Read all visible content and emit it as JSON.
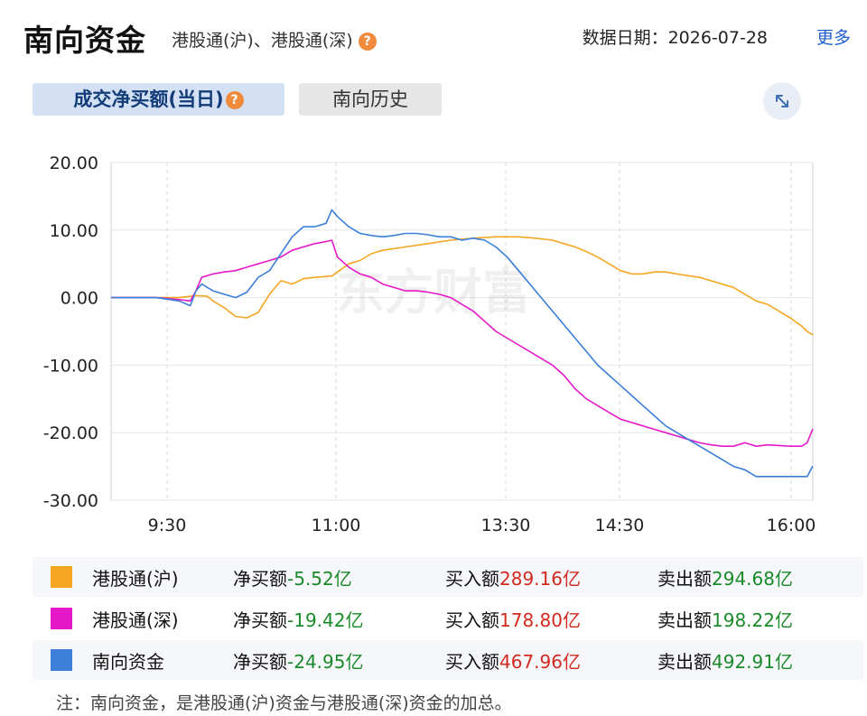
{
  "header": {
    "title": "南向资金",
    "subtitle": "港股通(沪)、港股通(深)",
    "help_icon": "question-icon",
    "date_label": "数据日期：2026-07-28",
    "more_link": "更多"
  },
  "tabs": [
    {
      "label": "成交净买额(当日)",
      "active": true
    },
    {
      "label": "南向历史",
      "active": false
    }
  ],
  "expand_icon": "expand-arrows-icon",
  "watermark": "东方财富",
  "colors": {
    "hu": "#f5a623",
    "shen": "#e619c8",
    "south": "#3b7fd8",
    "green": "#1a8a2a",
    "red": "#d22a1f"
  },
  "chart_data": {
    "type": "line",
    "x_ticks": [
      "9:30",
      "11:00",
      "13:30",
      "14:30",
      "16:00"
    ],
    "y_ticks": [
      "20.00",
      "10.00",
      "0.00",
      "-10.00",
      "-20.00",
      "-30.00"
    ],
    "ylim": [
      -30,
      20
    ],
    "grid": true,
    "series": [
      {
        "name": "港股通(沪)",
        "color": "#f5a623",
        "values": [
          [
            0,
            0
          ],
          [
            40,
            0
          ],
          [
            60,
            0
          ],
          [
            75,
            0.3
          ],
          [
            85,
            0.2
          ],
          [
            90,
            -0.5
          ],
          [
            100,
            -1.5
          ],
          [
            110,
            -2.8
          ],
          [
            120,
            -3.0
          ],
          [
            130,
            -2.2
          ],
          [
            140,
            0.5
          ],
          [
            150,
            2.5
          ],
          [
            160,
            2.0
          ],
          [
            170,
            2.8
          ],
          [
            180,
            3.0
          ],
          [
            195,
            3.2
          ],
          [
            210,
            5.0
          ],
          [
            220,
            5.5
          ],
          [
            230,
            6.5
          ],
          [
            240,
            7.0
          ],
          [
            260,
            7.5
          ],
          [
            280,
            8.0
          ],
          [
            300,
            8.5
          ],
          [
            320,
            8.8
          ],
          [
            340,
            9.0
          ],
          [
            360,
            9.0
          ],
          [
            375,
            8.8
          ],
          [
            390,
            8.5
          ],
          [
            400,
            8.0
          ],
          [
            410,
            7.5
          ],
          [
            420,
            6.8
          ],
          [
            430,
            6.0
          ],
          [
            440,
            5.0
          ],
          [
            450,
            4.0
          ],
          [
            460,
            3.5
          ],
          [
            470,
            3.5
          ],
          [
            480,
            3.8
          ],
          [
            490,
            3.8
          ],
          [
            500,
            3.5
          ],
          [
            520,
            3.0
          ],
          [
            540,
            2.0
          ],
          [
            550,
            1.5
          ],
          [
            560,
            0.5
          ],
          [
            570,
            -0.5
          ],
          [
            580,
            -1.0
          ],
          [
            590,
            -2.0
          ],
          [
            600,
            -3.0
          ],
          [
            610,
            -4.2
          ],
          [
            615,
            -5.0
          ],
          [
            620,
            -5.52
          ]
        ]
      },
      {
        "name": "港股通(深)",
        "color": "#e619c8",
        "values": [
          [
            0,
            0
          ],
          [
            40,
            0
          ],
          [
            60,
            -0.3
          ],
          [
            70,
            -0.5
          ],
          [
            75,
            1.0
          ],
          [
            80,
            3.0
          ],
          [
            90,
            3.5
          ],
          [
            100,
            3.8
          ],
          [
            110,
            4.0
          ],
          [
            120,
            4.5
          ],
          [
            130,
            5.0
          ],
          [
            140,
            5.5
          ],
          [
            150,
            6.0
          ],
          [
            160,
            7.0
          ],
          [
            170,
            7.5
          ],
          [
            180,
            8.0
          ],
          [
            190,
            8.3
          ],
          [
            195,
            8.5
          ],
          [
            200,
            6.0
          ],
          [
            210,
            4.5
          ],
          [
            220,
            3.5
          ],
          [
            230,
            3.0
          ],
          [
            240,
            2.0
          ],
          [
            250,
            1.5
          ],
          [
            260,
            1.0
          ],
          [
            270,
            1.0
          ],
          [
            280,
            0.8
          ],
          [
            290,
            0.5
          ],
          [
            300,
            0.0
          ],
          [
            310,
            -1.0
          ],
          [
            320,
            -2.0
          ],
          [
            330,
            -3.5
          ],
          [
            340,
            -5.0
          ],
          [
            350,
            -6.0
          ],
          [
            360,
            -7.0
          ],
          [
            370,
            -8.0
          ],
          [
            380,
            -9.0
          ],
          [
            390,
            -10.0
          ],
          [
            400,
            -11.5
          ],
          [
            410,
            -13.5
          ],
          [
            420,
            -15.0
          ],
          [
            430,
            -16.0
          ],
          [
            440,
            -17.0
          ],
          [
            450,
            -18.0
          ],
          [
            460,
            -18.5
          ],
          [
            470,
            -19.0
          ],
          [
            480,
            -19.5
          ],
          [
            490,
            -20.0
          ],
          [
            500,
            -20.5
          ],
          [
            510,
            -21.0
          ],
          [
            520,
            -21.5
          ],
          [
            530,
            -21.8
          ],
          [
            540,
            -22.0
          ],
          [
            550,
            -22.0
          ],
          [
            560,
            -21.5
          ],
          [
            570,
            -22.0
          ],
          [
            580,
            -21.8
          ],
          [
            590,
            -21.9
          ],
          [
            600,
            -22.0
          ],
          [
            610,
            -22.0
          ],
          [
            615,
            -21.5
          ],
          [
            620,
            -19.42
          ]
        ]
      },
      {
        "name": "南向资金",
        "color": "#3b7fd8",
        "values": [
          [
            0,
            0
          ],
          [
            40,
            0
          ],
          [
            60,
            -0.5
          ],
          [
            70,
            -1.2
          ],
          [
            75,
            1.0
          ],
          [
            80,
            2.0
          ],
          [
            90,
            1.0
          ],
          [
            100,
            0.5
          ],
          [
            110,
            0.0
          ],
          [
            120,
            0.8
          ],
          [
            130,
            3.0
          ],
          [
            140,
            4.0
          ],
          [
            150,
            6.5
          ],
          [
            160,
            9.0
          ],
          [
            170,
            10.5
          ],
          [
            180,
            10.5
          ],
          [
            190,
            11.0
          ],
          [
            195,
            13.0
          ],
          [
            200,
            12.0
          ],
          [
            210,
            10.5
          ],
          [
            220,
            9.5
          ],
          [
            230,
            9.2
          ],
          [
            240,
            9.0
          ],
          [
            250,
            9.2
          ],
          [
            260,
            9.5
          ],
          [
            270,
            9.5
          ],
          [
            280,
            9.3
          ],
          [
            290,
            9.0
          ],
          [
            300,
            9.0
          ],
          [
            310,
            8.5
          ],
          [
            320,
            8.8
          ],
          [
            330,
            8.5
          ],
          [
            340,
            7.5
          ],
          [
            350,
            6.0
          ],
          [
            360,
            4.0
          ],
          [
            370,
            2.0
          ],
          [
            380,
            0.0
          ],
          [
            390,
            -2.0
          ],
          [
            400,
            -4.0
          ],
          [
            410,
            -6.0
          ],
          [
            420,
            -8.0
          ],
          [
            430,
            -10.0
          ],
          [
            440,
            -11.5
          ],
          [
            450,
            -13.0
          ],
          [
            460,
            -14.5
          ],
          [
            470,
            -16.0
          ],
          [
            480,
            -17.5
          ],
          [
            490,
            -19.0
          ],
          [
            500,
            -20.0
          ],
          [
            510,
            -21.0
          ],
          [
            520,
            -22.0
          ],
          [
            530,
            -23.0
          ],
          [
            540,
            -24.0
          ],
          [
            550,
            -25.0
          ],
          [
            560,
            -25.5
          ],
          [
            570,
            -26.5
          ],
          [
            580,
            -26.5
          ],
          [
            590,
            -26.5
          ],
          [
            600,
            -26.5
          ],
          [
            610,
            -26.5
          ],
          [
            615,
            -26.5
          ],
          [
            620,
            -24.95
          ]
        ]
      }
    ]
  },
  "legend": [
    {
      "name": "港股通(沪)",
      "color": "#f5a623",
      "net_label": "净买额",
      "net_value": "-5.52亿",
      "buy_label": "买入额",
      "buy_value": "289.16亿",
      "sell_label": "卖出额",
      "sell_value": "294.68亿"
    },
    {
      "name": "港股通(深)",
      "color": "#e619c8",
      "net_label": "净买额",
      "net_value": "-19.42亿",
      "buy_label": "买入额",
      "buy_value": "178.80亿",
      "sell_label": "卖出额",
      "sell_value": "198.22亿"
    },
    {
      "name": "南向资金",
      "color": "#3b7fd8",
      "net_label": "净买额",
      "net_value": "-24.95亿",
      "buy_label": "买入额",
      "buy_value": "467.96亿",
      "sell_label": "卖出额",
      "sell_value": "492.91亿"
    }
  ],
  "footnote": "注：南向资金，是港股通(沪)资金与港股通(深)资金的加总。"
}
